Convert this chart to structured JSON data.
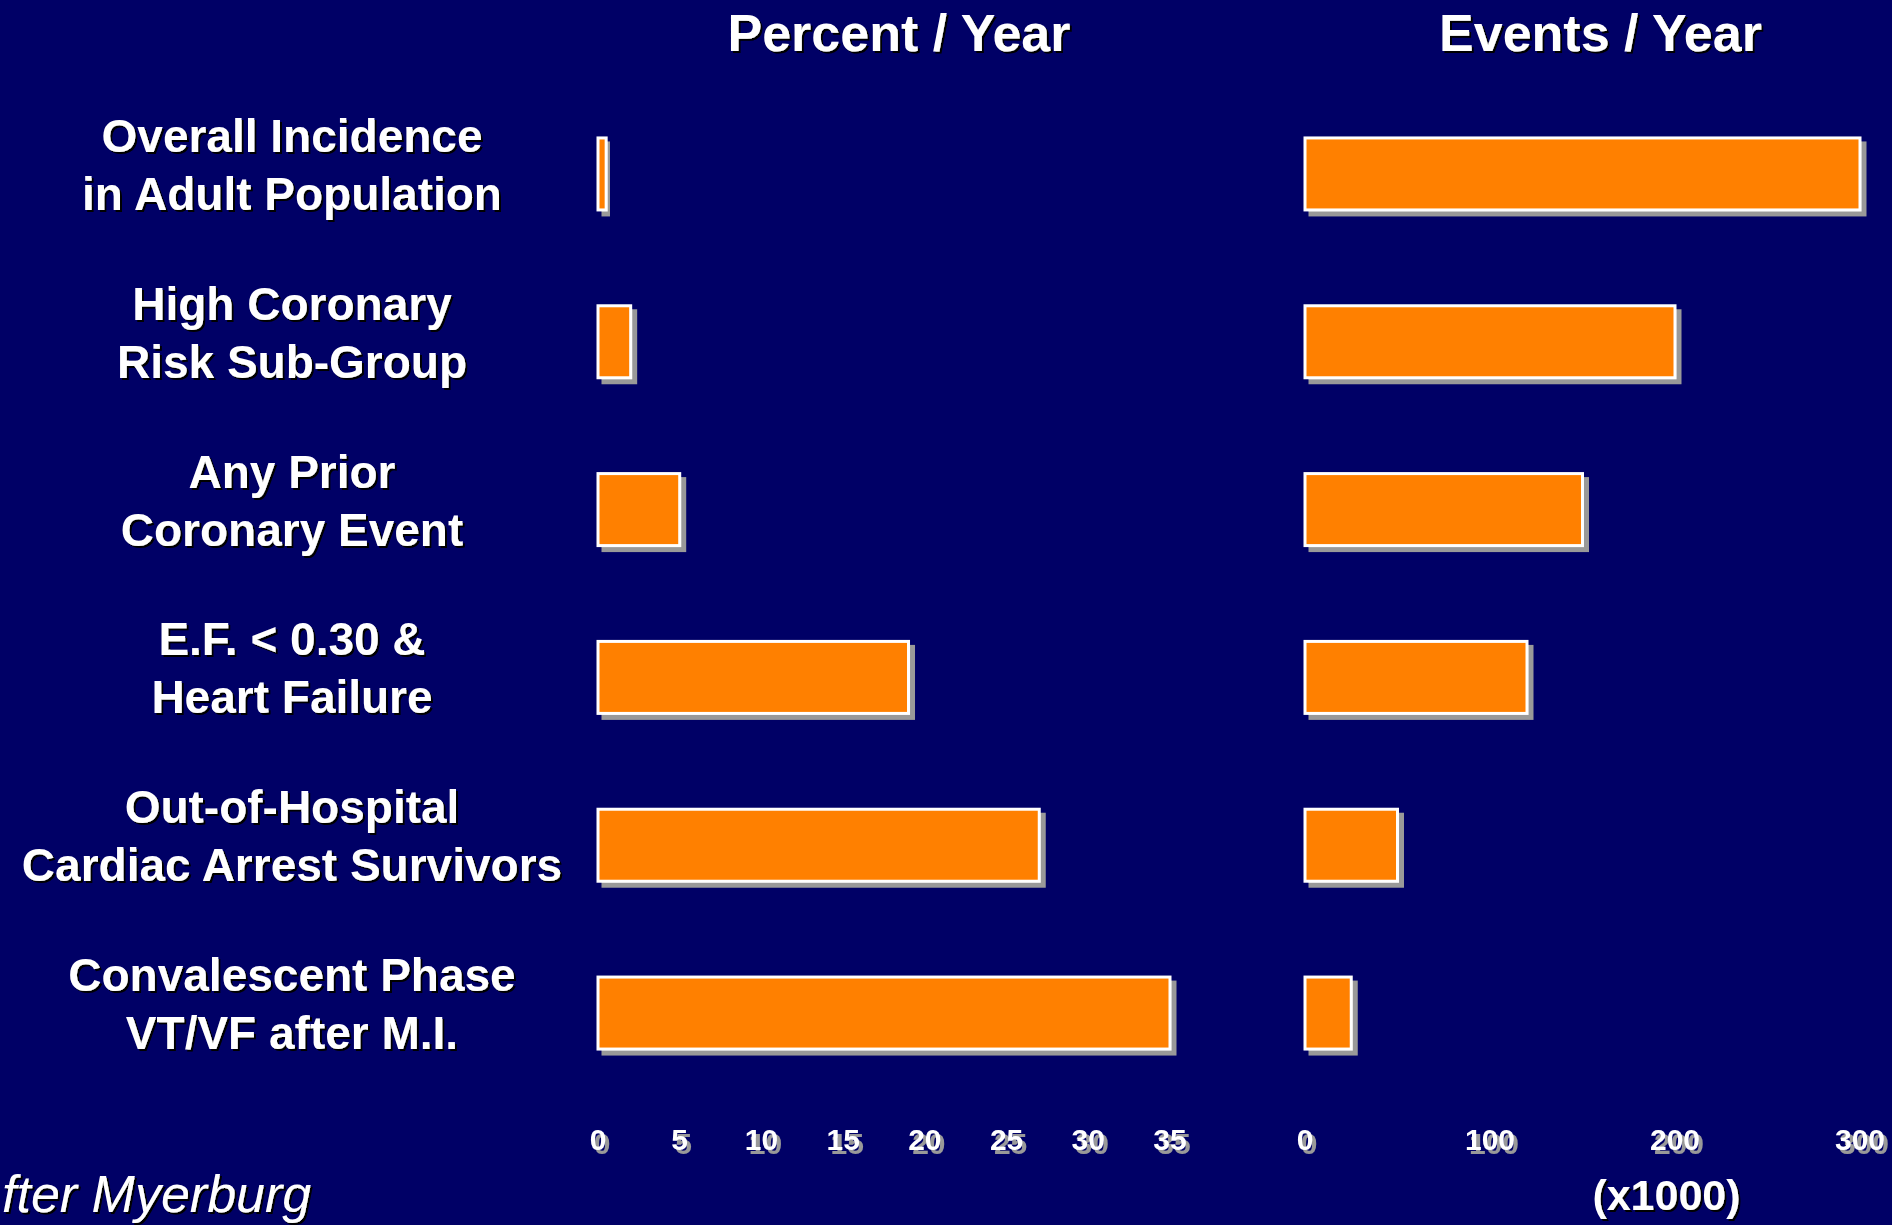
{
  "chart_data": [
    {
      "type": "bar",
      "orientation": "horizontal",
      "title": "Percent / Year",
      "categories": [
        "Overall Incidence\nin Adult Population",
        "High Coronary\nRisk Sub-Group",
        "Any Prior\nCoronary Event",
        "E.F. < 0.30 &\nHeart Failure",
        "Out-of-Hospital\nCardiac Arrest Survivors",
        "Convalescent Phase\nVT/VF after M.I."
      ],
      "values": [
        0.5,
        2,
        5,
        19,
        27,
        35
      ],
      "color": "#ff8000",
      "xlim": [
        0,
        35
      ],
      "xticks": [
        0,
        5,
        10,
        15,
        20,
        25,
        30,
        35
      ],
      "annotations": [
        "fter Myerburg"
      ]
    },
    {
      "type": "bar",
      "orientation": "horizontal",
      "title": "Events / Year",
      "xlabel": "(x1000)",
      "categories": [
        null,
        null,
        null,
        null,
        null,
        null
      ],
      "values": [
        300,
        200,
        150,
        120,
        50,
        25
      ],
      "color": "#ff8000",
      "xlim": [
        0,
        300
      ],
      "xticks": [
        0,
        100,
        200,
        300
      ]
    }
  ]
}
